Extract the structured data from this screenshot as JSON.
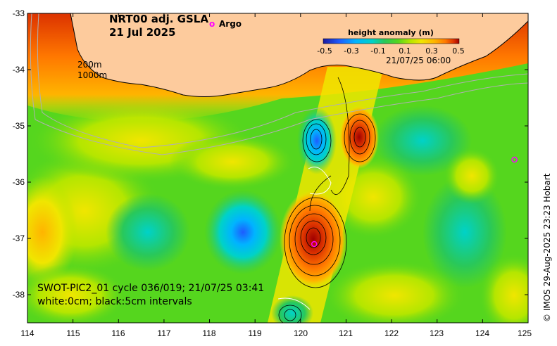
{
  "map": {
    "title_line1": "NRT00 adj. GSLA",
    "title_line2": "21 Jul 2025",
    "argo_marker_symbol": "o",
    "argo_label": "Argo",
    "depth_contour_labels": [
      "200m",
      "1000m"
    ],
    "swath_timestamp": "21/07/25 06:00",
    "swot_line1": "SWOT-PIC2_01 cycle 036/019; 21/07/25 03:41",
    "swot_line2": "white:0cm; black:5cm intervals",
    "credit": "© IMOS 29-Aug-2025 23:23 Hobart",
    "lon_ticks": [
      "114",
      "115",
      "116",
      "117",
      "118",
      "119",
      "120",
      "121",
      "122",
      "123",
      "124",
      "125"
    ],
    "lat_ticks": [
      "-33",
      "-34",
      "-35",
      "-36",
      "-37",
      "-38"
    ],
    "lon_range": [
      114,
      125
    ],
    "lat_range": [
      -38.5,
      -33
    ],
    "colors": {
      "land": "#fdcb9d",
      "argo": "#ff00ff",
      "bathymetry": "#b0b0b0"
    }
  },
  "colorbar": {
    "title": "height anomaly (m)",
    "ticks": [
      "-0.5",
      "-0.3",
      "-0.1",
      "0.1",
      "0.3",
      "0.5"
    ],
    "range": [
      -0.5,
      0.5
    ],
    "colors": [
      "#1a1aa0",
      "#1e5cff",
      "#00b4ff",
      "#00d2c8",
      "#29c85a",
      "#55d61e",
      "#b4e600",
      "#f0e600",
      "#ffb400",
      "#ff7800",
      "#dc3200",
      "#a00000"
    ]
  },
  "argo_floats": [
    {
      "lon": 120.3,
      "lat": -37.1
    },
    {
      "lon": 124.7,
      "lat": -35.6
    }
  ]
}
